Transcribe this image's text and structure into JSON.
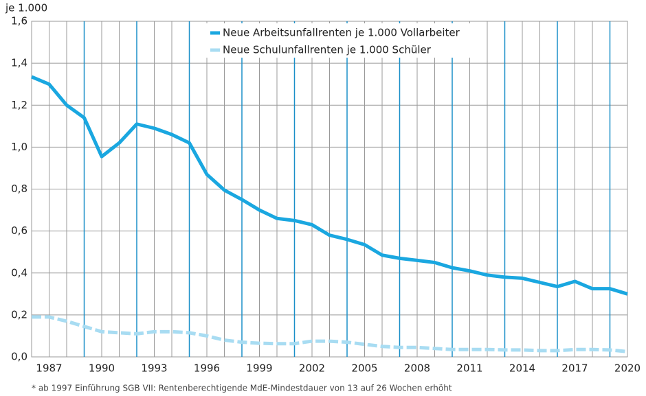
{
  "chart_data": {
    "type": "line",
    "y_unit": "je 1.000",
    "footnote": "* ab 1997 Einführung SGB VII: Rentenberechtigende MdE-Mindestdauer von 13 auf 26 Wochen erhöht",
    "x": [
      1986,
      1987,
      1988,
      1989,
      1990,
      1991,
      1992,
      1993,
      1994,
      1995,
      1996,
      1997,
      1998,
      1999,
      2000,
      2001,
      2002,
      2003,
      2004,
      2005,
      2006,
      2007,
      2008,
      2009,
      2010,
      2011,
      2012,
      2013,
      2014,
      2015,
      2016,
      2017,
      2018,
      2019,
      2020
    ],
    "series": [
      {
        "name": "Neue Arbeitsunfallrenten je 1.000 Vollarbeiter",
        "color": "#1aa7e0",
        "dash": false,
        "values": [
          1.335,
          1.3,
          1.2,
          1.14,
          0.955,
          1.02,
          1.11,
          1.09,
          1.06,
          1.02,
          0.87,
          0.795,
          0.75,
          0.7,
          0.66,
          0.65,
          0.63,
          0.58,
          0.56,
          0.535,
          0.485,
          0.47,
          0.46,
          0.45,
          0.425,
          0.41,
          0.39,
          0.38,
          0.375,
          0.355,
          0.335,
          0.36,
          0.325,
          0.325,
          0.3
        ]
      },
      {
        "name": "Neue Schulunfallrenten je 1.000 Schüler",
        "color": "#a8dcf2",
        "dash": true,
        "values": [
          0.19,
          0.19,
          0.17,
          0.145,
          0.12,
          0.115,
          0.11,
          0.12,
          0.12,
          0.115,
          0.1,
          0.08,
          0.07,
          0.065,
          0.063,
          0.063,
          0.075,
          0.075,
          0.07,
          0.06,
          0.05,
          0.045,
          0.045,
          0.04,
          0.035,
          0.035,
          0.035,
          0.033,
          0.033,
          0.03,
          0.03,
          0.035,
          0.035,
          0.033,
          0.025
        ]
      }
    ],
    "xlim": [
      1986,
      2020
    ],
    "xticks": [
      1987,
      1990,
      1993,
      1996,
      1999,
      2002,
      2005,
      2008,
      2011,
      2014,
      2017,
      2020
    ],
    "ylim": [
      0,
      1.6
    ],
    "yticks": [
      {
        "value": 0,
        "label": "0,0"
      },
      {
        "value": 0.2,
        "label": "0,2"
      },
      {
        "value": 0.4,
        "label": "0,4"
      },
      {
        "value": 0.6,
        "label": "0,6"
      },
      {
        "value": 0.8,
        "label": "0,8"
      },
      {
        "value": 1.0,
        "label": "1,0"
      },
      {
        "value": 1.2,
        "label": "1,2"
      },
      {
        "value": 1.4,
        "label": "1,4"
      },
      {
        "value": 1.6,
        "label": "1,6"
      }
    ],
    "grid": true
  }
}
